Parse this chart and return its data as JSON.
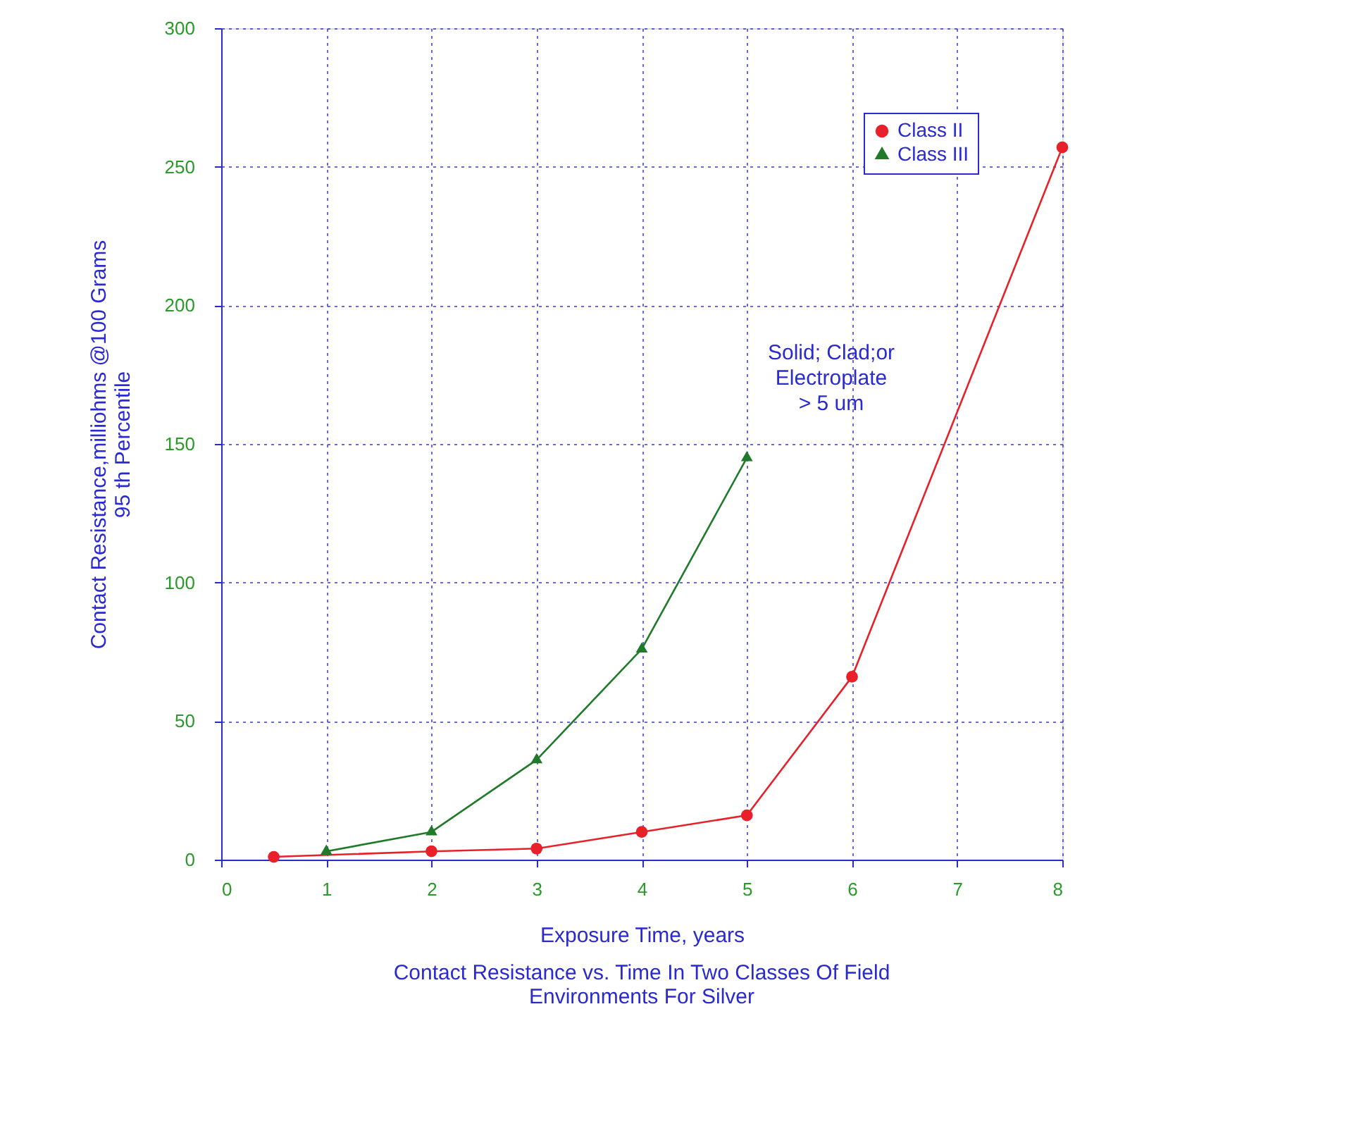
{
  "chart_data": {
    "type": "line",
    "title": "Contact Resistance vs. Time In Two Classes Of Field\nEnvironments For Silver",
    "xlabel": "Exposure Time, years",
    "ylabel": "Contact Resistance,milliohms @100 Grams\n95 th Percentile",
    "series": [
      {
        "name": "Class II",
        "color": "#e8202a",
        "marker": "circle",
        "x": [
          0.5,
          2,
          3,
          4,
          5,
          6,
          8
        ],
        "values": [
          1,
          3,
          4,
          10,
          16,
          66,
          257
        ]
      },
      {
        "name": "Class III",
        "color": "#1f7a2a",
        "marker": "triangle",
        "x": [
          1,
          2,
          3,
          4,
          5
        ],
        "values": [
          3,
          10,
          36,
          76,
          145
        ]
      }
    ],
    "xlim": [
      0,
      8
    ],
    "xticks": [
      0,
      1,
      2,
      3,
      4,
      5,
      6,
      7,
      8
    ],
    "ylim": [
      0,
      300
    ],
    "yticks": [
      0,
      50,
      100,
      150,
      200,
      250,
      300
    ],
    "grid": true,
    "legend": "top right",
    "line_style": "solid",
    "annotations": [
      "Solid; Clad;or\nElectroplate\n> 5 um"
    ]
  }
}
